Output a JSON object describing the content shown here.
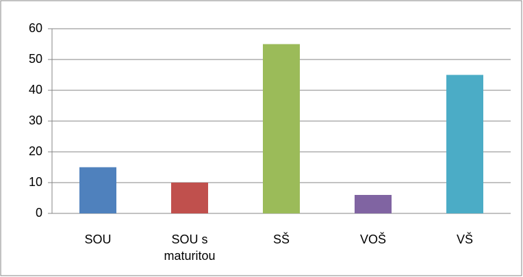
{
  "chart_data": {
    "type": "bar",
    "categories": [
      "SOU",
      "SOU s maturitou",
      "SŠ",
      "VOŠ",
      "VŠ"
    ],
    "values": [
      15,
      10,
      55,
      6,
      45
    ],
    "colors": [
      "#4f81bd",
      "#c0504d",
      "#9bbb59",
      "#8064a2",
      "#4bacc6"
    ],
    "ylim": [
      0,
      60
    ],
    "yticks": [
      0,
      10,
      20,
      30,
      40,
      50,
      60
    ],
    "grid": true
  }
}
